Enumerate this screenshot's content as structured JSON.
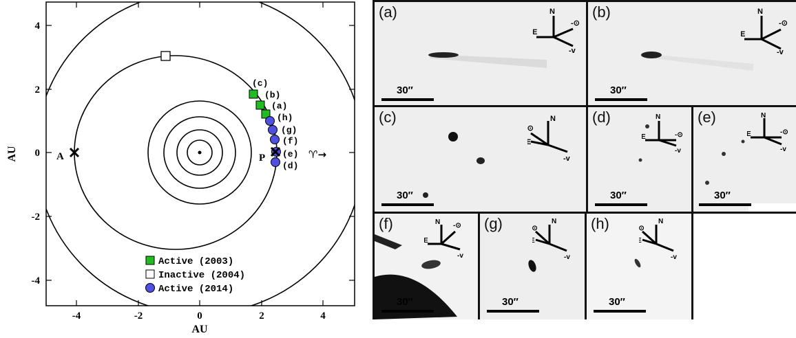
{
  "orbit_plot": {
    "x_axis_label": "AU",
    "y_axis_label": "AU",
    "x_ticks": [
      "-4",
      "-2",
      "0",
      "2",
      "4"
    ],
    "y_ticks": [
      "4",
      "2",
      "0",
      "-2",
      "-4"
    ],
    "aphelion_label": "A",
    "perihelion_label": "P",
    "direction_label": "♈→",
    "observation_labels": [
      "(c)",
      "(b)",
      "(a)",
      "(h)",
      "(g)",
      "(f)",
      "(e)",
      "(d)"
    ],
    "legend": [
      {
        "label": "Active (2003)",
        "color": "#22bb22",
        "marker": "square"
      },
      {
        "label": "Inactive (2004)",
        "color": "#ffffff",
        "marker": "square"
      },
      {
        "label": "Active (2014)",
        "color": "#4f4fe0",
        "marker": "circle"
      }
    ]
  },
  "panels": [
    {
      "label": "(a)",
      "scale": "30″",
      "compass": [
        "N",
        "E",
        "-⊙",
        "-v"
      ]
    },
    {
      "label": "(b)",
      "scale": "30″",
      "compass": [
        "N",
        "E",
        "-⊙",
        "-v"
      ]
    },
    {
      "label": "(c)",
      "scale": "30″",
      "compass": [
        "N",
        "E",
        "-⊙",
        "-v"
      ]
    },
    {
      "label": "(d)",
      "scale": "30″",
      "compass": [
        "N",
        "E",
        "-⊙",
        "-v"
      ]
    },
    {
      "label": "(e)",
      "scale": "30″",
      "compass": [
        "N",
        "E",
        "-⊙",
        "-v"
      ]
    },
    {
      "label": "(f)",
      "scale": "30″",
      "compass": [
        "N",
        "E",
        "-⊙",
        "-v"
      ]
    },
    {
      "label": "(g)",
      "scale": "30″",
      "compass": [
        "N",
        "E",
        "-⊙",
        "-v"
      ]
    },
    {
      "label": "(h)",
      "scale": "30″",
      "compass": [
        "N",
        "E",
        "-⊙",
        "-v"
      ]
    }
  ]
}
